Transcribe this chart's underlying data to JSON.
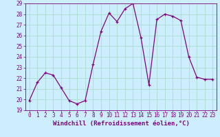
{
  "x": [
    0,
    1,
    2,
    3,
    4,
    5,
    6,
    7,
    8,
    9,
    10,
    11,
    12,
    13,
    14,
    15,
    16,
    17,
    18,
    19,
    20,
    21,
    22,
    23
  ],
  "y": [
    19.9,
    21.6,
    22.5,
    22.3,
    21.1,
    19.9,
    19.6,
    19.9,
    23.3,
    26.4,
    28.1,
    27.3,
    28.5,
    29.0,
    25.8,
    21.4,
    27.5,
    28.0,
    27.8,
    27.4,
    24.0,
    22.1,
    21.9,
    21.9
  ],
  "line_color": "#800080",
  "marker": "+",
  "bg_color": "#cceeff",
  "grid_color": "#aaddcc",
  "xlabel": "Windchill (Refroidissement éolien,°C)",
  "xlim": [
    -0.5,
    23.5
  ],
  "ylim": [
    19,
    29
  ],
  "yticks": [
    19,
    20,
    21,
    22,
    23,
    24,
    25,
    26,
    27,
    28,
    29
  ],
  "xticks": [
    0,
    1,
    2,
    3,
    4,
    5,
    6,
    7,
    8,
    9,
    10,
    11,
    12,
    13,
    14,
    15,
    16,
    17,
    18,
    19,
    20,
    21,
    22,
    23
  ],
  "xlabel_fontsize": 6.5,
  "tick_fontsize": 5.5,
  "line_width": 0.9,
  "marker_size": 3,
  "marker_edge_width": 0.9
}
